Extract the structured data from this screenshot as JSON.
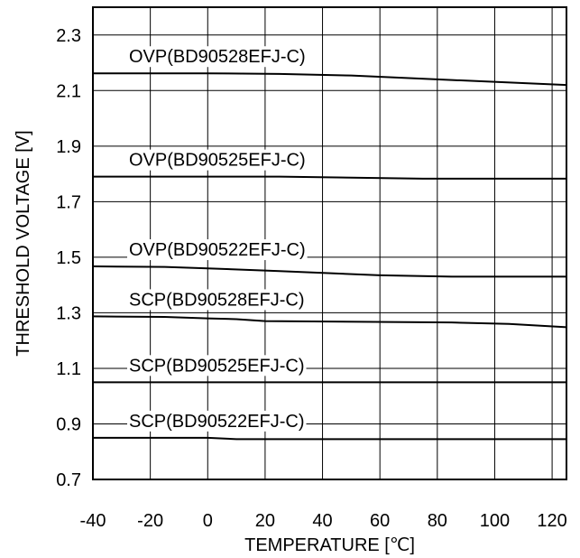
{
  "chart_data": {
    "type": "line",
    "title": "",
    "xlabel": "TEMPERATURE [℃]",
    "ylabel": "THRESHOLD VOLTAGE [V]",
    "xlim": [
      -40,
      125
    ],
    "ylim": [
      0.7,
      2.4
    ],
    "xticks": [
      -40,
      -20,
      0,
      20,
      40,
      60,
      80,
      100,
      120
    ],
    "xtick_labels": [
      "-40",
      "-20",
      "0",
      "20",
      "40",
      "60",
      "80",
      "100",
      "120"
    ],
    "yticks": [
      0.7,
      0.9,
      1.1,
      1.3,
      1.5,
      1.7,
      1.9,
      2.1,
      2.3
    ],
    "ytick_labels": [
      "0.7",
      "0.9",
      "1.1",
      "1.3",
      "1.5",
      "1.7",
      "1.9",
      "2.1",
      "2.3"
    ],
    "grid": true,
    "legend": "none",
    "series": [
      {
        "name": "OVP(BD90528EFJ-C)",
        "x": [
          -40,
          0,
          25,
          50,
          85,
          125
        ],
        "y": [
          2.162,
          2.162,
          2.16,
          2.154,
          2.138,
          2.12
        ]
      },
      {
        "name": "OVP(BD90525EFJ-C)",
        "x": [
          -40,
          0,
          25,
          75,
          125
        ],
        "y": [
          1.79,
          1.79,
          1.79,
          1.783,
          1.783
        ]
      },
      {
        "name": "OVP(BD90522EFJ-C)",
        "x": [
          -40,
          -15,
          0,
          25,
          60,
          85,
          125
        ],
        "y": [
          1.467,
          1.465,
          1.46,
          1.45,
          1.435,
          1.43,
          1.43
        ]
      },
      {
        "name": "SCP(BD90528EFJ-C)",
        "x": [
          -40,
          -15,
          0,
          10,
          20,
          85,
          105,
          125
        ],
        "y": [
          1.287,
          1.285,
          1.28,
          1.277,
          1.27,
          1.265,
          1.26,
          1.248
        ]
      },
      {
        "name": "SCP(BD90525EFJ-C)",
        "x": [
          -40,
          0,
          125
        ],
        "y": [
          1.05,
          1.05,
          1.05
        ]
      },
      {
        "name": "SCP(BD90522EFJ-C)",
        "x": [
          -40,
          0,
          10,
          125
        ],
        "y": [
          0.85,
          0.85,
          0.845,
          0.845
        ]
      }
    ]
  }
}
